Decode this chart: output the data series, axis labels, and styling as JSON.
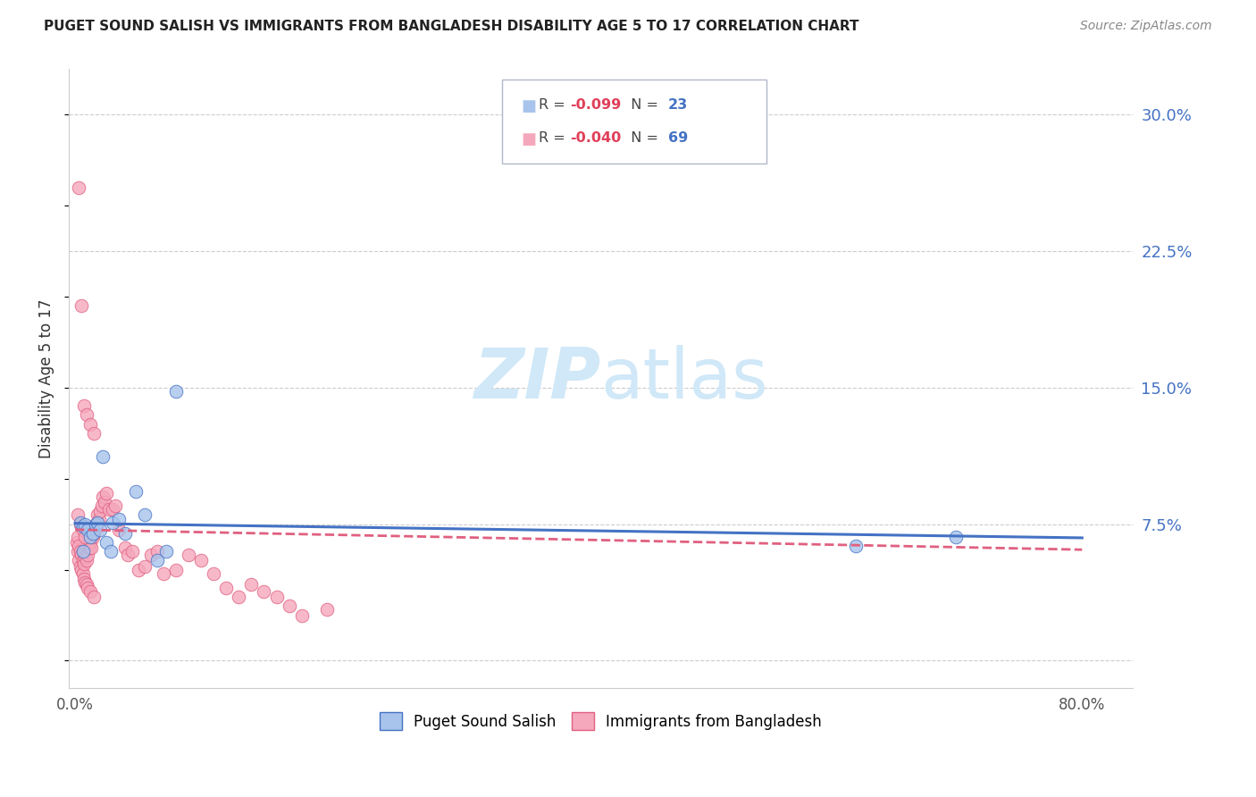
{
  "title": "PUGET SOUND SALISH VS IMMIGRANTS FROM BANGLADESH DISABILITY AGE 5 TO 17 CORRELATION CHART",
  "source": "Source: ZipAtlas.com",
  "ylabel": "Disability Age 5 to 17",
  "yticks": [
    0.0,
    0.075,
    0.15,
    0.225,
    0.3
  ],
  "ytick_labels": [
    "",
    "7.5%",
    "15.0%",
    "22.5%",
    "30.0%"
  ],
  "xlim": [
    -0.005,
    0.84
  ],
  "ylim": [
    -0.015,
    0.325
  ],
  "r_blue": -0.099,
  "n_blue": 23,
  "r_pink": -0.04,
  "n_pink": 69,
  "blue_color": "#a8c4ec",
  "pink_color": "#f5a8bc",
  "blue_edge_color": "#4472c4",
  "pink_edge_color": "#e06080",
  "blue_line_color": "#4472c4",
  "pink_line_color": "#e06080",
  "axis_color": "#cccccc",
  "title_color": "#222222",
  "source_color": "#888888",
  "ylabel_color": "#333333",
  "tick_color": "#555555",
  "right_tick_color": "#4472c4",
  "watermark_color": "#d0e8f8",
  "legend_r_color": "#e0405a",
  "legend_n_color": "#4472c4",
  "blue_scatter_x": [
    0.004,
    0.006,
    0.008,
    0.01,
    0.012,
    0.014,
    0.016,
    0.018,
    0.02,
    0.022,
    0.025,
    0.028,
    0.03,
    0.035,
    0.04,
    0.048,
    0.055,
    0.065,
    0.072,
    0.08,
    0.62,
    0.7,
    0.006
  ],
  "blue_scatter_y": [
    0.076,
    0.074,
    0.075,
    0.072,
    0.068,
    0.07,
    0.075,
    0.076,
    0.072,
    0.112,
    0.065,
    0.06,
    0.076,
    0.078,
    0.07,
    0.093,
    0.08,
    0.055,
    0.06,
    0.148,
    0.063,
    0.068,
    0.06
  ],
  "pink_scatter_x": [
    0.001,
    0.002,
    0.002,
    0.003,
    0.003,
    0.004,
    0.004,
    0.005,
    0.005,
    0.006,
    0.006,
    0.007,
    0.007,
    0.008,
    0.008,
    0.009,
    0.009,
    0.01,
    0.01,
    0.011,
    0.012,
    0.012,
    0.013,
    0.014,
    0.015,
    0.015,
    0.016,
    0.017,
    0.018,
    0.019,
    0.02,
    0.021,
    0.022,
    0.023,
    0.025,
    0.027,
    0.03,
    0.032,
    0.035,
    0.04,
    0.042,
    0.045,
    0.05,
    0.055,
    0.06,
    0.065,
    0.07,
    0.08,
    0.09,
    0.1,
    0.11,
    0.12,
    0.13,
    0.14,
    0.15,
    0.16,
    0.17,
    0.18,
    0.2,
    0.003,
    0.005,
    0.007,
    0.009,
    0.012,
    0.015,
    0.002,
    0.004,
    0.006,
    0.008
  ],
  "pink_scatter_y": [
    0.065,
    0.068,
    0.06,
    0.063,
    0.055,
    0.06,
    0.052,
    0.058,
    0.05,
    0.055,
    0.048,
    0.053,
    0.045,
    0.057,
    0.043,
    0.055,
    0.042,
    0.058,
    0.04,
    0.062,
    0.065,
    0.038,
    0.062,
    0.068,
    0.07,
    0.035,
    0.075,
    0.073,
    0.08,
    0.078,
    0.082,
    0.085,
    0.09,
    0.087,
    0.092,
    0.083,
    0.083,
    0.085,
    0.072,
    0.062,
    0.058,
    0.06,
    0.05,
    0.052,
    0.058,
    0.06,
    0.048,
    0.05,
    0.058,
    0.055,
    0.048,
    0.04,
    0.035,
    0.042,
    0.038,
    0.035,
    0.03,
    0.025,
    0.028,
    0.26,
    0.195,
    0.14,
    0.135,
    0.13,
    0.125,
    0.08,
    0.075,
    0.072,
    0.068
  ],
  "blue_trend_x": [
    0.0,
    0.8
  ],
  "blue_trend_y": [
    0.0755,
    0.0675
  ],
  "pink_trend_x": [
    0.0,
    0.8
  ],
  "pink_trend_y": [
    0.072,
    0.061
  ]
}
